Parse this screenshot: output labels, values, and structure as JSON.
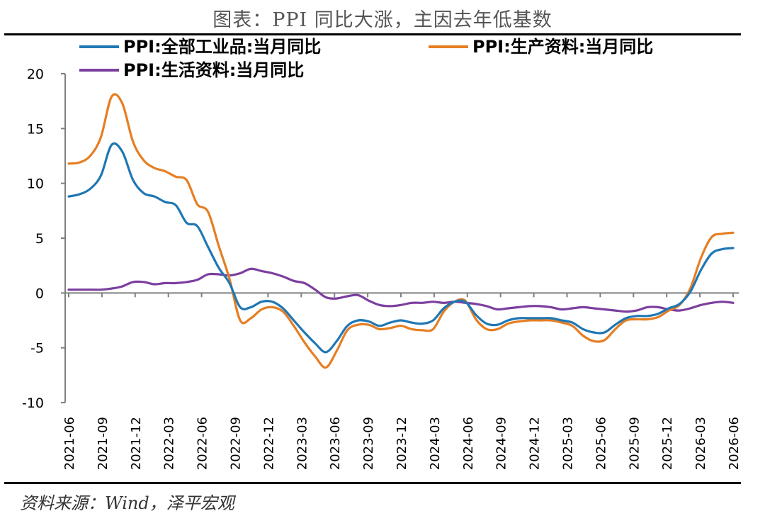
{
  "header": {
    "title": "图表：PPI 同比大涨，主因去年低基数"
  },
  "footer": {
    "source": "资料来源：Wind，泽平宏观"
  },
  "chart_data": {
    "type": "line",
    "title": "图表：PPI 同比大涨，主因去年低基数",
    "xlabel": "",
    "ylabel": "",
    "ylim": [
      -10,
      20
    ],
    "yticks": [
      20,
      15,
      10,
      5,
      0,
      -5,
      -10
    ],
    "x_tick_labels": [
      "2021-06",
      "2021-09",
      "2021-12",
      "2022-03",
      "2022-06",
      "2022-09",
      "2022-12",
      "2023-03",
      "2023-06",
      "2023-09",
      "2023-12",
      "2024-03",
      "2024-06",
      "2024-09",
      "2024-12",
      "2025-03",
      "2025-06",
      "2025-09",
      "2025-12",
      "2026-03",
      "2026-06"
    ],
    "legend_position": "top",
    "grid": false,
    "series": [
      {
        "name": "PPI:全部工业品:当月同比",
        "color": "#1f77b4",
        "values": [
          8.8,
          9.0,
          9.5,
          10.7,
          13.5,
          12.9,
          10.3,
          9.1,
          8.8,
          8.3,
          8.0,
          6.4,
          6.1,
          4.2,
          2.3,
          0.9,
          -1.3,
          -1.3,
          -0.8,
          -0.8,
          -1.4,
          -2.5,
          -3.6,
          -4.6,
          -5.4,
          -4.4,
          -3.0,
          -2.5,
          -2.6,
          -3.0,
          -2.7,
          -2.5,
          -2.7,
          -2.8,
          -2.5,
          -1.4,
          -0.8,
          -0.8,
          -2.0,
          -2.8,
          -2.9,
          -2.5,
          -2.3,
          -2.3,
          -2.3,
          -2.3,
          -2.5,
          -2.7,
          -3.3,
          -3.6,
          -3.6,
          -2.9,
          -2.3,
          -2.1,
          -2.1,
          -1.9,
          -1.4,
          -1.0,
          0.1,
          2.1,
          3.6,
          4.0,
          4.1
        ]
      },
      {
        "name": "PPI:生产资料:当月同比",
        "color": "#e67e22",
        "values": [
          11.8,
          11.9,
          12.5,
          14.2,
          17.9,
          17.3,
          13.8,
          12.1,
          11.4,
          11.1,
          10.6,
          10.3,
          8.1,
          7.4,
          4.3,
          1.3,
          -2.5,
          -2.3,
          -1.5,
          -1.3,
          -1.7,
          -3.0,
          -4.5,
          -5.8,
          -6.8,
          -5.3,
          -3.4,
          -2.9,
          -2.9,
          -3.3,
          -3.2,
          -3.0,
          -3.3,
          -3.4,
          -3.3,
          -1.7,
          -0.8,
          -0.7,
          -2.4,
          -3.3,
          -3.3,
          -2.8,
          -2.6,
          -2.5,
          -2.5,
          -2.5,
          -2.7,
          -3.0,
          -3.9,
          -4.4,
          -4.3,
          -3.3,
          -2.5,
          -2.4,
          -2.4,
          -2.2,
          -1.6,
          -1.1,
          0.4,
          3.2,
          5.1,
          5.4,
          5.5
        ]
      },
      {
        "name": "PPI:生活资料:当月同比",
        "color": "#7b3f9e",
        "values": [
          0.3,
          0.3,
          0.3,
          0.3,
          0.4,
          0.6,
          1.0,
          1.0,
          0.8,
          0.9,
          0.9,
          1.0,
          1.2,
          1.7,
          1.7,
          1.6,
          1.8,
          2.2,
          2.0,
          1.8,
          1.5,
          1.1,
          0.9,
          0.3,
          -0.4,
          -0.5,
          -0.3,
          -0.2,
          -0.7,
          -1.1,
          -1.2,
          -1.1,
          -0.9,
          -0.9,
          -0.8,
          -0.9,
          -0.8,
          -0.9,
          -1.0,
          -1.2,
          -1.5,
          -1.4,
          -1.3,
          -1.2,
          -1.2,
          -1.3,
          -1.5,
          -1.4,
          -1.3,
          -1.4,
          -1.5,
          -1.6,
          -1.7,
          -1.6,
          -1.3,
          -1.3,
          -1.5,
          -1.6,
          -1.4,
          -1.1,
          -0.9,
          -0.8,
          -0.9
        ]
      }
    ]
  }
}
